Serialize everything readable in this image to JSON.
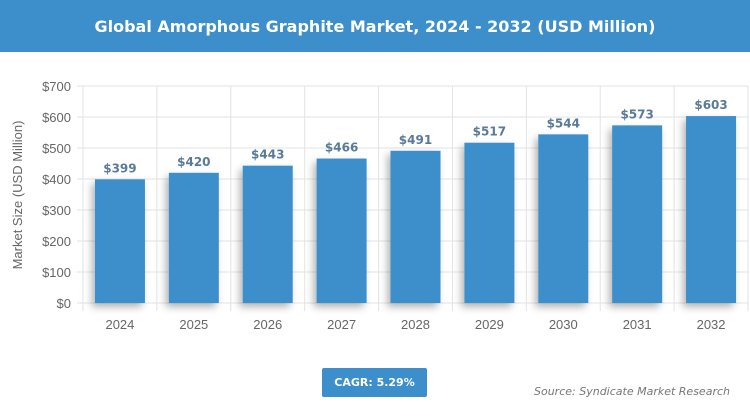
{
  "chart_data": {
    "type": "bar",
    "title": "Global Amorphous Graphite Market, 2024 - 2032 (USD Million)",
    "ylabel": "Market Size (USD Million)",
    "xlabel": "",
    "categories": [
      "2024",
      "2025",
      "2026",
      "2027",
      "2028",
      "2029",
      "2030",
      "2031",
      "2032"
    ],
    "values": [
      399,
      420,
      443,
      466,
      491,
      517,
      544,
      573,
      603
    ],
    "data_labels": [
      "$399",
      "$420",
      "$443",
      "$466",
      "$491",
      "$517",
      "$544",
      "$573",
      "$603"
    ],
    "ylim": [
      0,
      700
    ],
    "yticks": [
      "$0",
      "$100",
      "$200",
      "$300",
      "$400",
      "$500",
      "$600",
      "$700"
    ],
    "grid": true,
    "bar_color": "#3d8fcc",
    "label_color": "#5a7a9a"
  },
  "cagr": "CAGR: 5.29%",
  "source": "Source: Syndicate Market Research"
}
